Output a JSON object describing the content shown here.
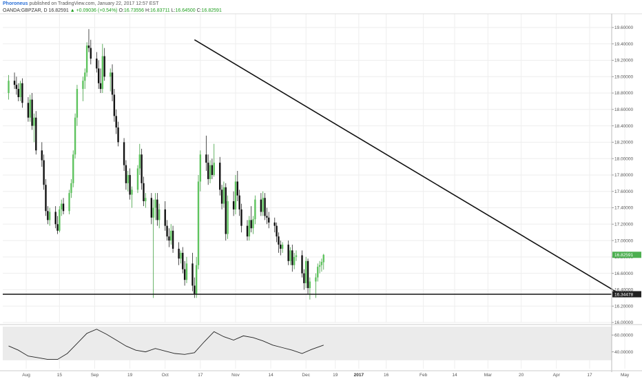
{
  "header": {
    "author": "Phoroneus",
    "published_text": "published on TradingView.com, January 22, 2017 12:57 EST"
  },
  "symbol_bar": {
    "symbol": "OANDA:GBPZAR, D",
    "last": "16.82591",
    "change": "+0.09036 (+0.54%)",
    "open_label": "O:",
    "open": "16.73556",
    "high_label": "H:",
    "high": "16.83711",
    "low_label": "L:",
    "low": "16.64500",
    "close_label": "C:",
    "close": "16.82591"
  },
  "colors": {
    "up_candle": "#5ec35e",
    "down_candle": "#111111",
    "last_price_tag": "#4caf50",
    "line_tag": "#222222",
    "grid": "#eeeeee",
    "rsi_band": "#ebebeb"
  },
  "chart_data": [
    {
      "type": "candlestick",
      "title": "OANDA:GBPZAR, D",
      "ylim": [
        16.0,
        19.7
      ],
      "y_ticks": [
        "19.60000",
        "19.40000",
        "19.20000",
        "19.00000",
        "18.80000",
        "18.60000",
        "18.40000",
        "18.20000",
        "18.00000",
        "17.80000",
        "17.60000",
        "17.40000",
        "17.20000",
        "17.00000",
        "16.80000",
        "16.60000",
        "16.40000",
        "16.20000",
        "16.00000"
      ],
      "x_ticks": [
        "Aug",
        "15",
        "Sep",
        "19",
        "Oct",
        "17",
        "Nov",
        "14",
        "Dec",
        "19",
        "2017",
        "16",
        "Feb",
        "14",
        "Mar",
        "20",
        "Apr",
        "17",
        "May"
      ],
      "last_price_label": "16.82591",
      "horizontal_line_label": "16.34478",
      "annotations": {
        "support_line": {
          "value": 16.34478
        },
        "trendline": {
          "from": {
            "day": 95,
            "price": 19.45
          },
          "to": {
            "day": 313,
            "price": 16.34
          }
        }
      },
      "candles": [
        {
          "day": 0,
          "o": 18.8,
          "h": 19.02,
          "l": 18.72,
          "c": 18.95
        },
        {
          "day": 3,
          "o": 18.95,
          "h": 19.05,
          "l": 18.85,
          "c": 18.9
        },
        {
          "day": 4,
          "o": 18.9,
          "h": 19.0,
          "l": 18.78,
          "c": 18.85
        },
        {
          "day": 5,
          "o": 18.85,
          "h": 18.92,
          "l": 18.7,
          "c": 18.75
        },
        {
          "day": 6,
          "o": 18.75,
          "h": 18.95,
          "l": 18.7,
          "c": 18.92
        },
        {
          "day": 7,
          "o": 18.92,
          "h": 18.98,
          "l": 18.62,
          "c": 18.68
        },
        {
          "day": 10,
          "o": 18.68,
          "h": 18.75,
          "l": 18.45,
          "c": 18.5
        },
        {
          "day": 11,
          "o": 18.5,
          "h": 18.78,
          "l": 18.45,
          "c": 18.72
        },
        {
          "day": 12,
          "o": 18.72,
          "h": 18.8,
          "l": 18.35,
          "c": 18.4
        },
        {
          "day": 13,
          "o": 18.4,
          "h": 18.55,
          "l": 18.2,
          "c": 18.5
        },
        {
          "day": 14,
          "o": 18.5,
          "h": 18.58,
          "l": 18.05,
          "c": 18.1
        },
        {
          "day": 17,
          "o": 18.1,
          "h": 18.2,
          "l": 17.9,
          "c": 17.98
        },
        {
          "day": 18,
          "o": 17.98,
          "h": 18.05,
          "l": 17.62,
          "c": 17.68
        },
        {
          "day": 19,
          "o": 17.68,
          "h": 17.75,
          "l": 17.3,
          "c": 17.36
        },
        {
          "day": 20,
          "o": 17.36,
          "h": 17.42,
          "l": 17.2,
          "c": 17.25
        },
        {
          "day": 21,
          "o": 17.25,
          "h": 17.4,
          "l": 17.18,
          "c": 17.35
        },
        {
          "day": 24,
          "o": 17.35,
          "h": 17.42,
          "l": 17.15,
          "c": 17.2
        },
        {
          "day": 25,
          "o": 17.2,
          "h": 17.3,
          "l": 17.08,
          "c": 17.12
        },
        {
          "day": 26,
          "o": 17.12,
          "h": 17.42,
          "l": 17.1,
          "c": 17.38
        },
        {
          "day": 27,
          "o": 17.38,
          "h": 17.5,
          "l": 17.3,
          "c": 17.45
        },
        {
          "day": 28,
          "o": 17.45,
          "h": 17.52,
          "l": 17.32,
          "c": 17.36
        },
        {
          "day": 31,
          "o": 17.36,
          "h": 17.62,
          "l": 17.32,
          "c": 17.58
        },
        {
          "day": 32,
          "o": 17.58,
          "h": 17.75,
          "l": 17.52,
          "c": 17.7
        },
        {
          "day": 33,
          "o": 17.7,
          "h": 18.1,
          "l": 17.65,
          "c": 18.05
        },
        {
          "day": 34,
          "o": 18.05,
          "h": 18.55,
          "l": 18.0,
          "c": 18.5
        },
        {
          "day": 35,
          "o": 18.5,
          "h": 18.9,
          "l": 18.4,
          "c": 18.85
        },
        {
          "day": 38,
          "o": 18.85,
          "h": 19.0,
          "l": 18.7,
          "c": 18.95
        },
        {
          "day": 39,
          "o": 18.95,
          "h": 19.1,
          "l": 18.85,
          "c": 19.05
        },
        {
          "day": 40,
          "o": 19.05,
          "h": 19.42,
          "l": 19.0,
          "c": 19.38
        },
        {
          "day": 41,
          "o": 19.38,
          "h": 19.58,
          "l": 19.3,
          "c": 19.35
        },
        {
          "day": 42,
          "o": 19.35,
          "h": 19.45,
          "l": 19.15,
          "c": 19.22
        },
        {
          "day": 45,
          "o": 19.22,
          "h": 19.3,
          "l": 19.05,
          "c": 19.1
        },
        {
          "day": 46,
          "o": 19.1,
          "h": 19.2,
          "l": 18.85,
          "c": 18.92
        },
        {
          "day": 47,
          "o": 18.92,
          "h": 19.1,
          "l": 18.8,
          "c": 18.85
        },
        {
          "day": 48,
          "o": 18.85,
          "h": 19.4,
          "l": 18.8,
          "c": 19.25
        },
        {
          "day": 49,
          "o": 19.25,
          "h": 19.35,
          "l": 18.95,
          "c": 19.0
        },
        {
          "day": 52,
          "o": 19.0,
          "h": 19.1,
          "l": 18.82,
          "c": 19.05
        },
        {
          "day": 53,
          "o": 19.05,
          "h": 19.15,
          "l": 18.7,
          "c": 18.78
        },
        {
          "day": 54,
          "o": 18.78,
          "h": 18.85,
          "l": 18.45,
          "c": 18.52
        },
        {
          "day": 55,
          "o": 18.52,
          "h": 18.6,
          "l": 18.3,
          "c": 18.38
        },
        {
          "day": 56,
          "o": 18.38,
          "h": 18.45,
          "l": 18.15,
          "c": 18.2
        },
        {
          "day": 59,
          "o": 18.2,
          "h": 18.25,
          "l": 17.85,
          "c": 17.92
        },
        {
          "day": 60,
          "o": 17.92,
          "h": 17.98,
          "l": 17.62,
          "c": 17.7
        },
        {
          "day": 61,
          "o": 17.7,
          "h": 17.85,
          "l": 17.6,
          "c": 17.8
        },
        {
          "day": 62,
          "o": 17.8,
          "h": 17.88,
          "l": 17.5,
          "c": 17.56
        },
        {
          "day": 63,
          "o": 17.56,
          "h": 17.66,
          "l": 17.4,
          "c": 17.62
        },
        {
          "day": 66,
          "o": 17.62,
          "h": 17.92,
          "l": 17.58,
          "c": 17.88
        },
        {
          "day": 67,
          "o": 17.88,
          "h": 18.18,
          "l": 17.8,
          "c": 18.05
        },
        {
          "day": 68,
          "o": 18.05,
          "h": 18.12,
          "l": 17.62,
          "c": 17.7
        },
        {
          "day": 69,
          "o": 17.7,
          "h": 17.78,
          "l": 17.42,
          "c": 17.48
        },
        {
          "day": 70,
          "o": 17.48,
          "h": 17.58,
          "l": 17.4,
          "c": 17.52
        },
        {
          "day": 73,
          "o": 17.52,
          "h": 17.58,
          "l": 17.2,
          "c": 17.28
        },
        {
          "day": 74,
          "o": 17.28,
          "h": 17.5,
          "l": 16.3,
          "c": 17.4
        },
        {
          "day": 75,
          "o": 17.4,
          "h": 17.58,
          "l": 17.25,
          "c": 17.5
        },
        {
          "day": 76,
          "o": 17.5,
          "h": 17.58,
          "l": 17.18,
          "c": 17.25
        },
        {
          "day": 77,
          "o": 17.25,
          "h": 17.45,
          "l": 17.15,
          "c": 17.38
        },
        {
          "day": 80,
          "o": 17.38,
          "h": 17.48,
          "l": 17.12,
          "c": 17.18
        },
        {
          "day": 81,
          "o": 17.18,
          "h": 17.25,
          "l": 17.0,
          "c": 17.05
        },
        {
          "day": 82,
          "o": 17.05,
          "h": 17.15,
          "l": 16.92,
          "c": 17.0
        },
        {
          "day": 83,
          "o": 17.0,
          "h": 17.2,
          "l": 16.95,
          "c": 17.12
        },
        {
          "day": 84,
          "o": 17.12,
          "h": 17.18,
          "l": 16.85,
          "c": 16.9
        },
        {
          "day": 87,
          "o": 16.9,
          "h": 16.98,
          "l": 16.7,
          "c": 16.78
        },
        {
          "day": 88,
          "o": 16.78,
          "h": 16.88,
          "l": 16.72,
          "c": 16.85
        },
        {
          "day": 89,
          "o": 16.85,
          "h": 16.92,
          "l": 16.6,
          "c": 16.65
        },
        {
          "day": 90,
          "o": 16.65,
          "h": 16.75,
          "l": 16.45,
          "c": 16.52
        },
        {
          "day": 91,
          "o": 16.52,
          "h": 16.8,
          "l": 16.48,
          "c": 16.72
        },
        {
          "day": 94,
          "o": 16.72,
          "h": 16.85,
          "l": 16.38,
          "c": 16.45
        },
        {
          "day": 95,
          "o": 16.45,
          "h": 16.55,
          "l": 16.3,
          "c": 16.35
        },
        {
          "day": 96,
          "o": 16.35,
          "h": 16.8,
          "l": 16.3,
          "c": 16.7
        },
        {
          "day": 97,
          "o": 16.7,
          "h": 17.8,
          "l": 16.65,
          "c": 17.72
        },
        {
          "day": 98,
          "o": 17.72,
          "h": 18.1,
          "l": 17.6,
          "c": 18.05
        },
        {
          "day": 101,
          "o": 18.05,
          "h": 18.28,
          "l": 17.85,
          "c": 17.95
        },
        {
          "day": 102,
          "o": 17.95,
          "h": 18.05,
          "l": 17.68,
          "c": 17.75
        },
        {
          "day": 103,
          "o": 17.75,
          "h": 17.98,
          "l": 17.7,
          "c": 17.92
        },
        {
          "day": 104,
          "o": 17.92,
          "h": 18.0,
          "l": 17.75,
          "c": 17.8
        },
        {
          "day": 105,
          "o": 17.8,
          "h": 18.18,
          "l": 17.78,
          "c": 17.95
        },
        {
          "day": 108,
          "o": 17.95,
          "h": 18.02,
          "l": 17.55,
          "c": 17.62
        },
        {
          "day": 109,
          "o": 17.62,
          "h": 17.68,
          "l": 17.38,
          "c": 17.45
        },
        {
          "day": 110,
          "o": 17.45,
          "h": 17.72,
          "l": 17.4,
          "c": 17.65
        },
        {
          "day": 111,
          "o": 17.65,
          "h": 17.7,
          "l": 17.0,
          "c": 17.08
        },
        {
          "day": 112,
          "o": 17.08,
          "h": 17.55,
          "l": 17.02,
          "c": 17.48
        },
        {
          "day": 115,
          "o": 17.48,
          "h": 17.6,
          "l": 17.3,
          "c": 17.38
        },
        {
          "day": 116,
          "o": 17.38,
          "h": 17.8,
          "l": 17.32,
          "c": 17.72
        },
        {
          "day": 117,
          "o": 17.72,
          "h": 17.85,
          "l": 17.48,
          "c": 17.55
        },
        {
          "day": 118,
          "o": 17.55,
          "h": 17.62,
          "l": 17.3,
          "c": 17.38
        },
        {
          "day": 119,
          "o": 17.38,
          "h": 17.45,
          "l": 17.1,
          "c": 17.18
        },
        {
          "day": 122,
          "o": 17.18,
          "h": 17.25,
          "l": 17.0,
          "c": 17.05
        },
        {
          "day": 123,
          "o": 17.05,
          "h": 17.3,
          "l": 17.0,
          "c": 17.25
        },
        {
          "day": 124,
          "o": 17.25,
          "h": 17.42,
          "l": 17.1,
          "c": 17.15
        },
        {
          "day": 125,
          "o": 17.15,
          "h": 17.3,
          "l": 17.08,
          "c": 17.26
        },
        {
          "day": 126,
          "o": 17.26,
          "h": 17.55,
          "l": 17.2,
          "c": 17.5
        },
        {
          "day": 129,
          "o": 17.5,
          "h": 17.58,
          "l": 17.3,
          "c": 17.35
        },
        {
          "day": 130,
          "o": 17.35,
          "h": 17.6,
          "l": 17.3,
          "c": 17.52
        },
        {
          "day": 131,
          "o": 17.52,
          "h": 17.58,
          "l": 17.25,
          "c": 17.3
        },
        {
          "day": 132,
          "o": 17.3,
          "h": 17.4,
          "l": 17.2,
          "c": 17.28
        },
        {
          "day": 133,
          "o": 17.28,
          "h": 17.35,
          "l": 17.15,
          "c": 17.22
        },
        {
          "day": 136,
          "o": 17.22,
          "h": 17.28,
          "l": 17.1,
          "c": 17.18
        },
        {
          "day": 137,
          "o": 17.18,
          "h": 17.22,
          "l": 16.98,
          "c": 17.05
        },
        {
          "day": 138,
          "o": 17.05,
          "h": 17.1,
          "l": 16.85,
          "c": 16.95
        },
        {
          "day": 139,
          "o": 16.95,
          "h": 17.0,
          "l": 16.82,
          "c": 16.9
        },
        {
          "day": 140,
          "o": 16.9,
          "h": 16.98,
          "l": 16.85,
          "c": 16.95
        },
        {
          "day": 143,
          "o": 16.95,
          "h": 17.0,
          "l": 16.7,
          "c": 16.75
        },
        {
          "day": 144,
          "o": 16.75,
          "h": 16.92,
          "l": 16.7,
          "c": 16.88
        },
        {
          "day": 145,
          "o": 16.88,
          "h": 16.95,
          "l": 16.62,
          "c": 16.7
        },
        {
          "day": 146,
          "o": 16.7,
          "h": 16.85,
          "l": 16.65,
          "c": 16.8
        },
        {
          "day": 147,
          "o": 16.8,
          "h": 16.88,
          "l": 16.75,
          "c": 16.82
        },
        {
          "day": 150,
          "o": 16.82,
          "h": 16.88,
          "l": 16.55,
          "c": 16.6
        },
        {
          "day": 151,
          "o": 16.6,
          "h": 16.65,
          "l": 16.4,
          "c": 16.48
        },
        {
          "day": 152,
          "o": 16.48,
          "h": 16.8,
          "l": 16.42,
          "c": 16.75
        },
        {
          "day": 153,
          "o": 16.75,
          "h": 16.78,
          "l": 16.35,
          "c": 16.42
        },
        {
          "day": 154,
          "o": 16.42,
          "h": 16.55,
          "l": 16.28,
          "c": 16.5
        },
        {
          "day": 157,
          "o": 16.5,
          "h": 16.6,
          "l": 16.3,
          "c": 16.55
        },
        {
          "day": 158,
          "o": 16.55,
          "h": 16.72,
          "l": 16.5,
          "c": 16.68
        },
        {
          "day": 159,
          "o": 16.68,
          "h": 16.75,
          "l": 16.6,
          "c": 16.7
        },
        {
          "day": 160,
          "o": 16.7,
          "h": 16.78,
          "l": 16.62,
          "c": 16.74
        },
        {
          "day": 161,
          "o": 16.73556,
          "h": 16.83711,
          "l": 16.645,
          "c": 16.82591
        }
      ]
    },
    {
      "type": "line",
      "ylim": [
        20,
        70
      ],
      "y_ticks": [
        "60.00000",
        "40.00000"
      ],
      "band": [
        30,
        70
      ],
      "x": [
        0,
        5,
        10,
        15,
        20,
        25,
        30,
        35,
        40,
        45,
        50,
        55,
        60,
        65,
        70,
        75,
        80,
        85,
        90,
        95,
        100,
        105,
        110,
        115,
        120,
        125,
        130,
        135,
        140,
        145,
        150,
        155,
        161
      ],
      "series": [
        {
          "values": [
            47,
            42,
            35,
            33,
            31,
            31,
            38,
            50,
            62,
            67,
            61,
            54,
            47,
            42,
            40,
            44,
            41,
            38,
            37,
            39,
            52,
            64,
            58,
            54,
            59,
            57,
            53,
            48,
            45,
            42,
            38,
            43,
            48
          ]
        }
      ]
    }
  ]
}
